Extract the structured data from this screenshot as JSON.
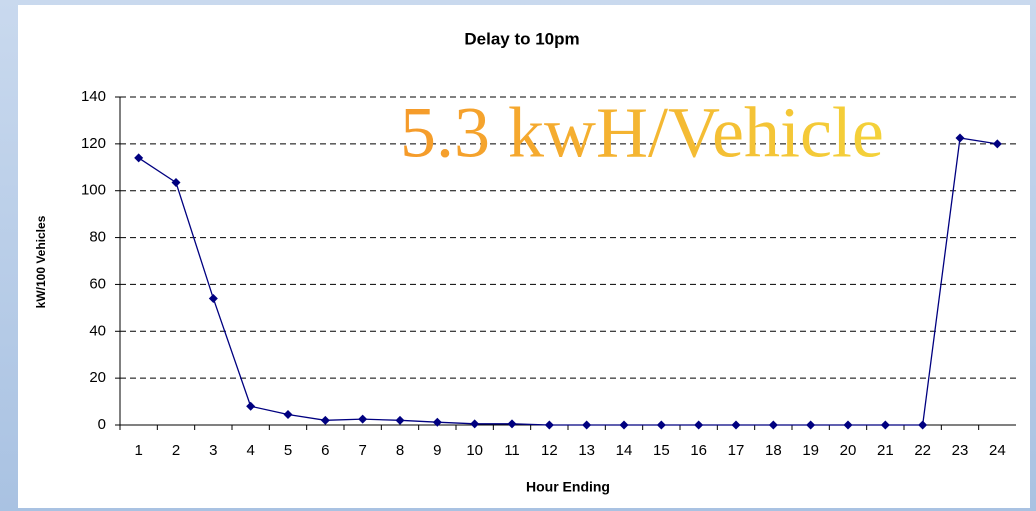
{
  "chart_data": {
    "type": "line",
    "title": "Delay to 10pm",
    "annotation": "5.3 kwH/Vehicle",
    "x_label": "Hour Ending",
    "y_label": "kW/100 Vehicles",
    "categories": [
      "1",
      "2",
      "3",
      "4",
      "5",
      "6",
      "7",
      "8",
      "9",
      "10",
      "11",
      "12",
      "13",
      "14",
      "15",
      "16",
      "17",
      "18",
      "19",
      "20",
      "21",
      "22",
      "23",
      "24"
    ],
    "series": [
      {
        "name": "Delay to 10pm",
        "color": "#000080",
        "values": [
          114,
          103.5,
          54,
          8,
          4.5,
          2,
          2.5,
          2,
          1.2,
          0.5,
          0.5,
          0,
          0,
          0,
          0,
          0,
          0,
          0,
          0,
          0,
          0,
          0,
          122.5,
          120
        ]
      }
    ],
    "ylim": [
      0,
      140
    ],
    "yticks": [
      0,
      20,
      40,
      60,
      80,
      100,
      120,
      140
    ],
    "grid": true
  }
}
